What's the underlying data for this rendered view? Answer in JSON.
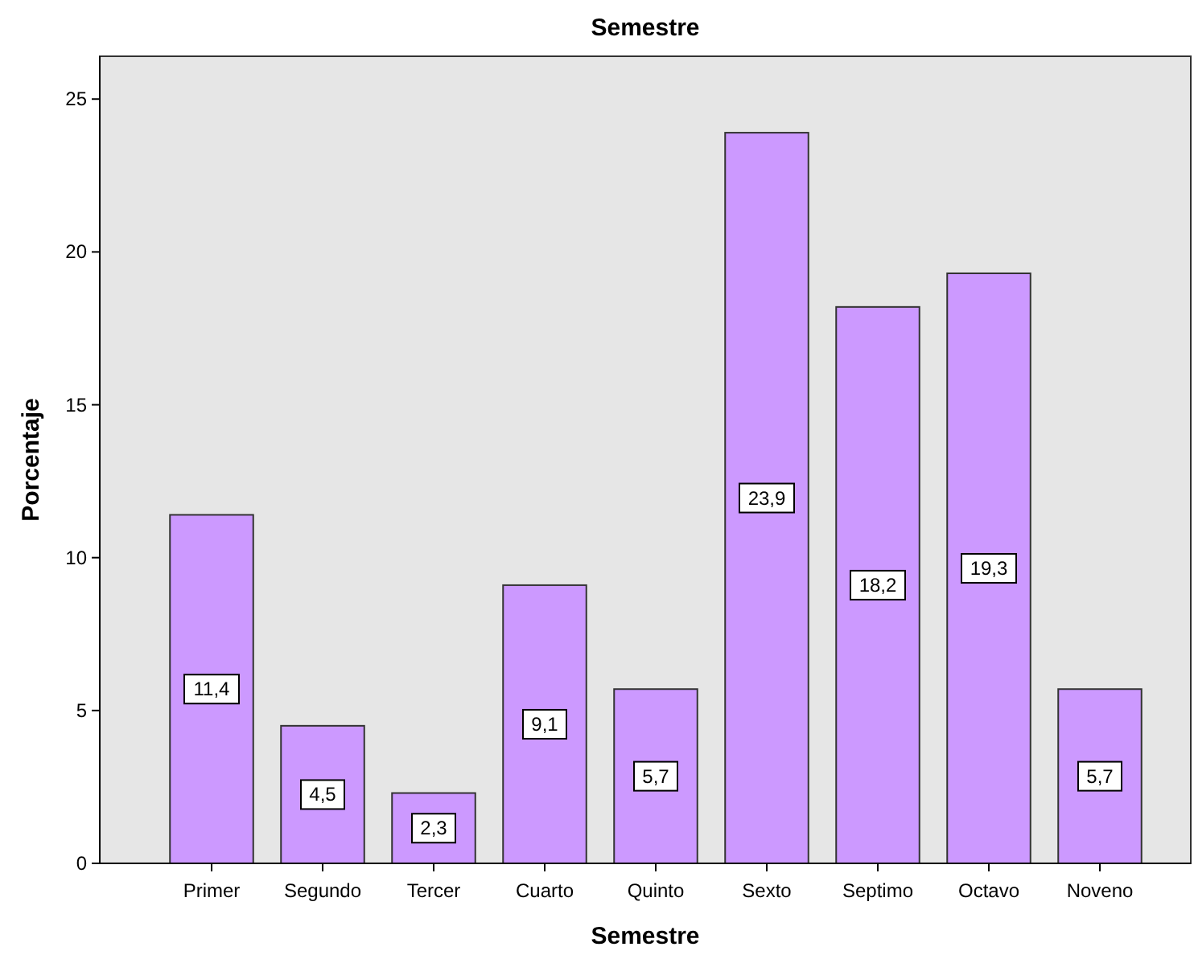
{
  "chart_data": {
    "type": "bar",
    "title": "Semestre",
    "xlabel": "Semestre",
    "ylabel": "Porcentaje",
    "categories": [
      "Primer",
      "Segundo",
      "Tercer",
      "Cuarto",
      "Quinto",
      "Sexto",
      "Septimo",
      "Octavo",
      "Noveno"
    ],
    "values": [
      11.4,
      4.5,
      2.3,
      9.1,
      5.7,
      23.9,
      18.2,
      19.3,
      5.7
    ],
    "value_labels": [
      "11,4",
      "4,5",
      "2,3",
      "9,1",
      "5,7",
      "23,9",
      "18,2",
      "19,3",
      "5,7"
    ],
    "color": "#cc99ff",
    "ylim": [
      0,
      26.4
    ],
    "yticks": [
      0,
      5,
      10,
      15,
      20,
      25
    ],
    "grid": false
  }
}
